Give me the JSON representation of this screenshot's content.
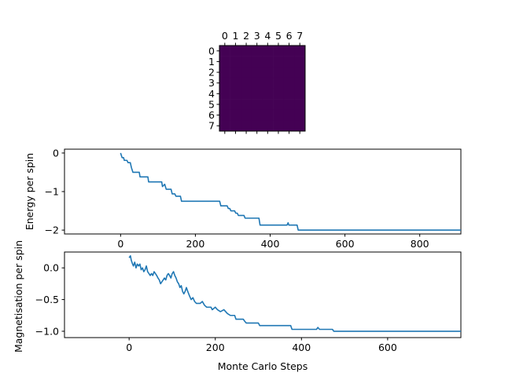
{
  "colors": {
    "line": "#1f77b4",
    "lattice": "#440154",
    "frame": "#000000",
    "background": "#ffffff"
  },
  "chart_data": [
    {
      "type": "heatmap",
      "title": "",
      "x_ticks": [
        "0",
        "1",
        "2",
        "3",
        "4",
        "5",
        "6",
        "7"
      ],
      "y_ticks": [
        "0",
        "1",
        "2",
        "3",
        "4",
        "5",
        "6",
        "7"
      ],
      "x_tick_position": "top",
      "grid": false,
      "colormap": "viridis",
      "values": [
        [
          0,
          0,
          0,
          0,
          0,
          0,
          0,
          0
        ],
        [
          0,
          0,
          0,
          0,
          0,
          0,
          0,
          0
        ],
        [
          0,
          0,
          0,
          0,
          0,
          0,
          0,
          0
        ],
        [
          0,
          0,
          0,
          0,
          0,
          0,
          0,
          0
        ],
        [
          0,
          0,
          0,
          0,
          0,
          0,
          0,
          0
        ],
        [
          0,
          0,
          0,
          0,
          0,
          0,
          0,
          0
        ],
        [
          0,
          0,
          0,
          0,
          0,
          0,
          0,
          0
        ],
        [
          0,
          0,
          0,
          0,
          0,
          0,
          0,
          0
        ]
      ]
    },
    {
      "type": "line",
      "title": "",
      "xlabel": "",
      "ylabel": "Energy per spin",
      "xlim": [
        -150,
        910
      ],
      "ylim": [
        -2.1,
        0.1
      ],
      "x_ticks": [
        0,
        200,
        400,
        600,
        800
      ],
      "y_ticks": [
        0,
        -1,
        -2
      ],
      "grid": false,
      "points": [
        [
          0,
          0
        ],
        [
          4,
          -0.12
        ],
        [
          8,
          -0.12
        ],
        [
          10,
          -0.19
        ],
        [
          17,
          -0.19
        ],
        [
          20,
          -0.25
        ],
        [
          26,
          -0.25
        ],
        [
          29,
          -0.38
        ],
        [
          31,
          -0.44
        ],
        [
          33,
          -0.5
        ],
        [
          50,
          -0.5
        ],
        [
          52,
          -0.62
        ],
        [
          73,
          -0.62
        ],
        [
          75,
          -0.75
        ],
        [
          110,
          -0.75
        ],
        [
          112,
          -0.87
        ],
        [
          118,
          -0.81
        ],
        [
          122,
          -0.94
        ],
        [
          135,
          -0.94
        ],
        [
          138,
          -1.06
        ],
        [
          145,
          -1.06
        ],
        [
          148,
          -1.12
        ],
        [
          160,
          -1.12
        ],
        [
          163,
          -1.25
        ],
        [
          265,
          -1.25
        ],
        [
          268,
          -1.37
        ],
        [
          285,
          -1.37
        ],
        [
          288,
          -1.44
        ],
        [
          292,
          -1.44
        ],
        [
          295,
          -1.5
        ],
        [
          305,
          -1.5
        ],
        [
          308,
          -1.56
        ],
        [
          312,
          -1.56
        ],
        [
          315,
          -1.62
        ],
        [
          330,
          -1.62
        ],
        [
          333,
          -1.69
        ],
        [
          370,
          -1.69
        ],
        [
          373,
          -1.87
        ],
        [
          445,
          -1.87
        ],
        [
          448,
          -1.81
        ],
        [
          450,
          -1.87
        ],
        [
          472,
          -1.87
        ],
        [
          475,
          -2
        ],
        [
          910,
          -2
        ]
      ]
    },
    {
      "type": "line",
      "title": "",
      "xlabel": "Monte Carlo Steps",
      "ylabel": "Magnetisation per spin",
      "xlim": [
        -150,
        770
      ],
      "ylim": [
        -1.1,
        0.25
      ],
      "x_ticks": [
        0,
        200,
        400,
        600
      ],
      "y_ticks": [
        0.0,
        -0.5,
        -1.0
      ],
      "grid": false,
      "points": [
        [
          0,
          0.16
        ],
        [
          3,
          0.19
        ],
        [
          5,
          0.12
        ],
        [
          8,
          0.06
        ],
        [
          10,
          0.03
        ],
        [
          13,
          0.09
        ],
        [
          16,
          0.0
        ],
        [
          19,
          0.06
        ],
        [
          22,
          0.03
        ],
        [
          25,
          0.06
        ],
        [
          28,
          -0.03
        ],
        [
          31,
          0.0
        ],
        [
          34,
          -0.06
        ],
        [
          37,
          -0.03
        ],
        [
          40,
          0.03
        ],
        [
          43,
          -0.06
        ],
        [
          46,
          -0.09
        ],
        [
          49,
          -0.12
        ],
        [
          52,
          -0.09
        ],
        [
          55,
          -0.12
        ],
        [
          58,
          -0.06
        ],
        [
          61,
          -0.09
        ],
        [
          64,
          -0.12
        ],
        [
          67,
          -0.16
        ],
        [
          70,
          -0.19
        ],
        [
          73,
          -0.25
        ],
        [
          76,
          -0.22
        ],
        [
          79,
          -0.19
        ],
        [
          82,
          -0.16
        ],
        [
          85,
          -0.19
        ],
        [
          88,
          -0.12
        ],
        [
          91,
          -0.09
        ],
        [
          94,
          -0.12
        ],
        [
          97,
          -0.16
        ],
        [
          100,
          -0.09
        ],
        [
          103,
          -0.06
        ],
        [
          106,
          -0.12
        ],
        [
          109,
          -0.16
        ],
        [
          112,
          -0.22
        ],
        [
          115,
          -0.25
        ],
        [
          118,
          -0.31
        ],
        [
          121,
          -0.28
        ],
        [
          124,
          -0.37
        ],
        [
          127,
          -0.41
        ],
        [
          130,
          -0.37
        ],
        [
          133,
          -0.31
        ],
        [
          136,
          -0.37
        ],
        [
          140,
          -0.44
        ],
        [
          144,
          -0.5
        ],
        [
          148,
          -0.47
        ],
        [
          152,
          -0.53
        ],
        [
          156,
          -0.56
        ],
        [
          165,
          -0.56
        ],
        [
          170,
          -0.53
        ],
        [
          175,
          -0.59
        ],
        [
          180,
          -0.62
        ],
        [
          190,
          -0.62
        ],
        [
          193,
          -0.66
        ],
        [
          200,
          -0.62
        ],
        [
          205,
          -0.66
        ],
        [
          212,
          -0.69
        ],
        [
          220,
          -0.66
        ],
        [
          228,
          -0.72
        ],
        [
          235,
          -0.75
        ],
        [
          245,
          -0.75
        ],
        [
          248,
          -0.81
        ],
        [
          265,
          -0.81
        ],
        [
          268,
          -0.84
        ],
        [
          272,
          -0.87
        ],
        [
          300,
          -0.87
        ],
        [
          303,
          -0.91
        ],
        [
          375,
          -0.91
        ],
        [
          378,
          -0.97
        ],
        [
          435,
          -0.97
        ],
        [
          438,
          -0.94
        ],
        [
          442,
          -0.97
        ],
        [
          472,
          -0.97
        ],
        [
          475,
          -1.0
        ],
        [
          770,
          -1.0
        ]
      ]
    }
  ]
}
